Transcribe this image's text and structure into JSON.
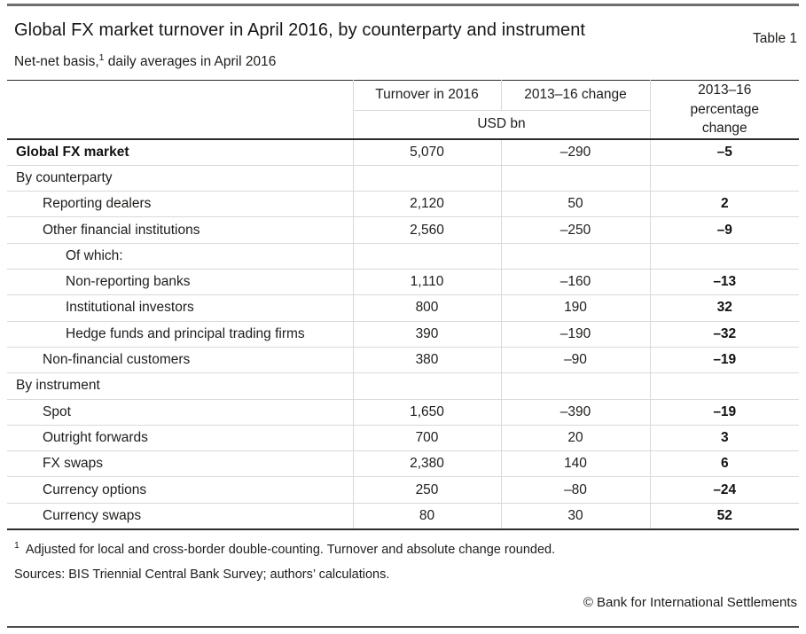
{
  "header": {
    "title": "Global FX market turnover in April 2016, by counterparty and instrument",
    "table_label": "Table 1",
    "subtitle_prefix": "Net-net basis,",
    "subtitle_footnote_marker": "1",
    "subtitle_suffix": " daily averages in April 2016"
  },
  "table": {
    "col_headers": {
      "turnover": "Turnover in 2016",
      "change": "2013–16 change",
      "unit": "USD bn",
      "pct_change": "2013–16 percentage change"
    },
    "rows": [
      {
        "label": "Global FX market",
        "indent": 0,
        "bold": true,
        "turnover": "5,070",
        "change": "–290",
        "pct": "–5"
      },
      {
        "label": "By counterparty",
        "indent": 0,
        "bold": false,
        "turnover": "",
        "change": "",
        "pct": ""
      },
      {
        "label": "Reporting dealers",
        "indent": 1,
        "bold": false,
        "turnover": "2,120",
        "change": "50",
        "pct": "2"
      },
      {
        "label": "Other financial institutions",
        "indent": 1,
        "bold": false,
        "turnover": "2,560",
        "change": "–250",
        "pct": "–9"
      },
      {
        "label": "Of which:",
        "indent": 2,
        "bold": false,
        "turnover": "",
        "change": "",
        "pct": ""
      },
      {
        "label": "Non-reporting banks",
        "indent": 2,
        "bold": false,
        "turnover": "1,110",
        "change": "–160",
        "pct": "–13"
      },
      {
        "label": "Institutional investors",
        "indent": 2,
        "bold": false,
        "turnover": "800",
        "change": "190",
        "pct": "32"
      },
      {
        "label": "Hedge funds and principal trading firms",
        "indent": 2,
        "bold": false,
        "turnover": "390",
        "change": "–190",
        "pct": "–32"
      },
      {
        "label": "Non-financial customers",
        "indent": 1,
        "bold": false,
        "turnover": "380",
        "change": "–90",
        "pct": "–19"
      },
      {
        "label": "By instrument",
        "indent": 0,
        "bold": false,
        "turnover": "",
        "change": "",
        "pct": ""
      },
      {
        "label": "Spot",
        "indent": 1,
        "bold": false,
        "turnover": "1,650",
        "change": "–390",
        "pct": "–19"
      },
      {
        "label": "Outright forwards",
        "indent": 1,
        "bold": false,
        "turnover": "700",
        "change": "20",
        "pct": "3"
      },
      {
        "label": "FX swaps",
        "indent": 1,
        "bold": false,
        "turnover": "2,380",
        "change": "140",
        "pct": "6"
      },
      {
        "label": "Currency options",
        "indent": 1,
        "bold": false,
        "turnover": "250",
        "change": "–80",
        "pct": "–24"
      },
      {
        "label": "Currency swaps",
        "indent": 1,
        "bold": false,
        "turnover": "80",
        "change": "30",
        "pct": "52"
      }
    ]
  },
  "footer": {
    "footnote_marker": "1",
    "footnote_text": "Adjusted for local and cross-border double-counting. Turnover and absolute change rounded.",
    "sources": "Sources: BIS Triennial Central Bank Survey; authors’ calculations.",
    "copyright": "© Bank for International Settlements"
  },
  "colors": {
    "page_rule": "#6e6e6e",
    "table_rule_dark": "#2b2b2b",
    "grid_light": "#d9d9d9",
    "text": "#1d1d1b"
  }
}
